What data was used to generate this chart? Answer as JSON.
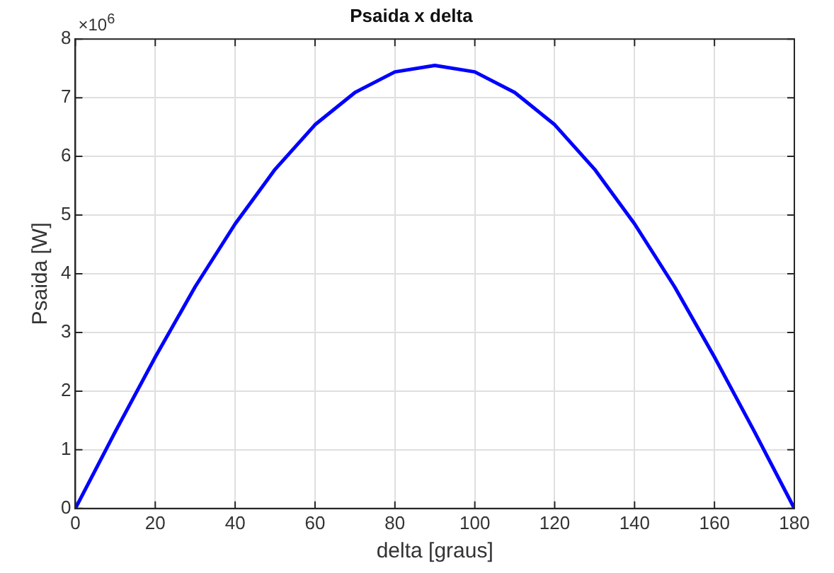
{
  "chart_data": {
    "type": "line",
    "title": "Psaida x delta",
    "xlabel": "delta [graus]",
    "ylabel": "Psaida [W]",
    "annotations": [
      "×10$^{6}$"
    ],
    "x": [
      0,
      10,
      20,
      30,
      40,
      50,
      60,
      70,
      80,
      90,
      100,
      110,
      120,
      130,
      140,
      150,
      160,
      170,
      180
    ],
    "series": [
      {
        "color": "#0000ff",
        "values": [
          0,
          1.31,
          2.58,
          3.78,
          4.85,
          5.78,
          6.54,
          7.09,
          7.44,
          7.55,
          7.44,
          7.09,
          6.54,
          5.78,
          4.85,
          3.78,
          2.58,
          1.31,
          0
        ]
      }
    ],
    "xlim": [
      0,
      180
    ],
    "xticks": [
      0,
      20,
      40,
      60,
      80,
      100,
      120,
      140,
      160,
      180
    ],
    "ylim": [
      0,
      8
    ],
    "yticks": [
      0,
      1,
      2,
      3,
      4,
      5,
      6,
      7,
      8
    ],
    "grid": true,
    "legend": false,
    "marker": "none",
    "line_style": "solid"
  }
}
